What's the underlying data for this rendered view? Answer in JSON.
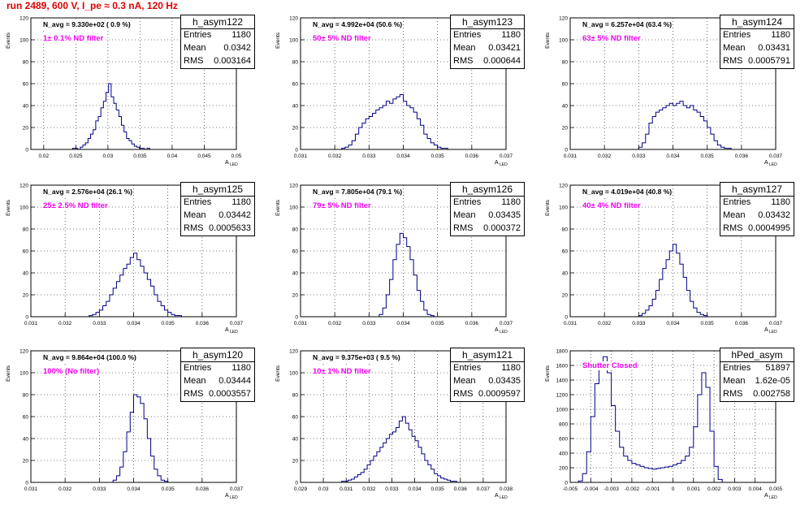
{
  "title": "run 2489,   600 V, I_pe ≈ 0.3 nA, 120 Hz",
  "chart_data": [
    {
      "type": "histogram",
      "name": "h_asym122",
      "stats": {
        "entries_label": "Entries",
        "entries": "1180",
        "mean_label": "Mean",
        "mean": "0.0342",
        "rms_label": "RMS",
        "rms": "0.003164"
      },
      "navg_text": "N_avg = 9.330e+02 ( 0.9 %)",
      "filter_text": "1± 0.1% ND filter",
      "xlabel": "A",
      "xlabel_sub": "LED",
      "ylabel": "Events",
      "xlim": [
        0.018,
        0.05
      ],
      "ylim": [
        0,
        120
      ],
      "xticks": [
        "0.02",
        "0.025",
        "0.03",
        "0.035",
        "0.04",
        "0.045",
        "0.05"
      ],
      "xtick_values": [
        0.02,
        0.025,
        0.03,
        0.035,
        0.04,
        0.045,
        0.05
      ],
      "yticks": [
        0,
        20,
        40,
        60,
        80,
        100,
        120
      ],
      "bin_edges": {
        "start": 0.0245,
        "width": 0.0004
      },
      "counts": [
        1,
        1,
        0,
        2,
        4,
        6,
        10,
        14,
        18,
        26,
        30,
        38,
        44,
        52,
        60,
        48,
        42,
        36,
        30,
        22,
        16,
        10,
        8,
        5,
        3,
        2,
        1,
        1,
        0,
        1
      ]
    },
    {
      "type": "histogram",
      "name": "h_asym123",
      "stats": {
        "entries_label": "Entries",
        "entries": "1180",
        "mean_label": "Mean",
        "mean": "0.03421",
        "rms_label": "RMS",
        "rms": "0.000644"
      },
      "navg_text": "N_avg = 4.992e+04 (50.6 %)",
      "filter_text": "50± 5% ND filter",
      "xlabel": "A",
      "xlabel_sub": "LED",
      "ylabel": "Events",
      "xlim": [
        0.031,
        0.037
      ],
      "ylim": [
        0,
        120
      ],
      "xticks": [
        "0.031",
        "0.032",
        "0.033",
        "0.034",
        "0.035",
        "0.036",
        "0.037"
      ],
      "xtick_values": [
        0.031,
        0.032,
        0.033,
        0.034,
        0.035,
        0.036,
        0.037
      ],
      "yticks": [
        0,
        20,
        40,
        60,
        80,
        100,
        120
      ],
      "bin_edges": {
        "start": 0.0322,
        "width": 0.0001
      },
      "counts": [
        1,
        2,
        4,
        8,
        14,
        20,
        24,
        28,
        30,
        33,
        36,
        38,
        40,
        44,
        42,
        46,
        48,
        50,
        44,
        40,
        38,
        34,
        28,
        22,
        14,
        10,
        6,
        4,
        2,
        1,
        1
      ]
    },
    {
      "type": "histogram",
      "name": "h_asym124",
      "stats": {
        "entries_label": "Entries",
        "entries": "1180",
        "mean_label": "Mean",
        "mean": "0.03431",
        "rms_label": "RMS",
        "rms": "0.0005791"
      },
      "navg_text": "N_avg = 6.257e+04 (63.4 %)",
      "filter_text": "63± 5% ND filter",
      "xlabel": "A",
      "xlabel_sub": "LED",
      "ylabel": "Events",
      "xlim": [
        0.031,
        0.037
      ],
      "ylim": [
        0,
        120
      ],
      "xticks": [
        "0.031",
        "0.032",
        "0.033",
        "0.034",
        "0.035",
        "0.036",
        "0.037"
      ],
      "xtick_values": [
        0.031,
        0.032,
        0.033,
        0.034,
        0.035,
        0.036,
        0.037
      ],
      "yticks": [
        0,
        20,
        40,
        60,
        80,
        100,
        120
      ],
      "bin_edges": {
        "start": 0.033,
        "width": 0.0001
      },
      "counts": [
        2,
        6,
        14,
        24,
        30,
        34,
        36,
        38,
        40,
        42,
        40,
        42,
        44,
        40,
        38,
        40,
        36,
        34,
        30,
        26,
        20,
        14,
        8,
        4,
        2,
        1,
        1
      ]
    },
    {
      "type": "histogram",
      "name": "h_asym125",
      "stats": {
        "entries_label": "Entries",
        "entries": "1180",
        "mean_label": "Mean",
        "mean": "0.03442",
        "rms_label": "RMS",
        "rms": "0.0005633"
      },
      "navg_text": "N_avg = 2.576e+04 (26.1 %)",
      "filter_text": "25± 2.5% ND filter",
      "xlabel": "A",
      "xlabel_sub": "LED",
      "ylabel": "Events",
      "xlim": [
        0.031,
        0.037
      ],
      "ylim": [
        0,
        120
      ],
      "xticks": [
        "0.031",
        "0.032",
        "0.033",
        "0.034",
        "0.035",
        "0.036",
        "0.037"
      ],
      "xtick_values": [
        0.031,
        0.032,
        0.033,
        0.034,
        0.035,
        0.036,
        0.037
      ],
      "yticks": [
        0,
        20,
        40,
        60,
        80,
        100,
        120
      ],
      "bin_edges": {
        "start": 0.0327,
        "width": 0.0001
      },
      "counts": [
        1,
        2,
        4,
        6,
        10,
        14,
        20,
        26,
        32,
        38,
        44,
        48,
        54,
        58,
        52,
        46,
        40,
        34,
        28,
        20,
        14,
        10,
        6,
        4,
        2,
        1,
        1
      ]
    },
    {
      "type": "histogram",
      "name": "h_asym126",
      "stats": {
        "entries_label": "Entries",
        "entries": "1180",
        "mean_label": "Mean",
        "mean": "0.03435",
        "rms_label": "RMS",
        "rms": "0.000372"
      },
      "navg_text": "N_avg = 7.805e+04 (79.1 %)",
      "filter_text": "79± 5% ND filter",
      "xlabel": "A",
      "xlabel_sub": "LED",
      "ylabel": "Events",
      "xlim": [
        0.031,
        0.037
      ],
      "ylim": [
        0,
        120
      ],
      "xticks": [
        "0.031",
        "0.032",
        "0.033",
        "0.034",
        "0.035",
        "0.036",
        "0.037"
      ],
      "xtick_values": [
        0.031,
        0.032,
        0.033,
        0.034,
        0.035,
        0.036,
        0.037
      ],
      "yticks": [
        0,
        20,
        40,
        60,
        80,
        100,
        120
      ],
      "bin_edges": {
        "start": 0.0333,
        "width": 0.0001
      },
      "counts": [
        2,
        8,
        20,
        34,
        52,
        66,
        76,
        72,
        64,
        52,
        38,
        24,
        14,
        6,
        2,
        1
      ]
    },
    {
      "type": "histogram",
      "name": "h_asym127",
      "stats": {
        "entries_label": "Entries",
        "entries": "1180",
        "mean_label": "Mean",
        "mean": "0.03432",
        "rms_label": "RMS",
        "rms": "0.0004995"
      },
      "navg_text": "N_avg = 4.019e+04 (40.8 %)",
      "filter_text": "40± 4% ND filter",
      "xlabel": "A",
      "xlabel_sub": "LED",
      "ylabel": "Events",
      "xlim": [
        0.031,
        0.037
      ],
      "ylim": [
        0,
        120
      ],
      "xticks": [
        "0.031",
        "0.032",
        "0.033",
        "0.034",
        "0.035",
        "0.036",
        "0.037"
      ],
      "xtick_values": [
        0.031,
        0.032,
        0.033,
        0.034,
        0.035,
        0.036,
        0.037
      ],
      "yticks": [
        0,
        20,
        40,
        60,
        80,
        100,
        120
      ],
      "bin_edges": {
        "start": 0.033,
        "width": 0.0001
      },
      "counts": [
        1,
        3,
        6,
        10,
        16,
        24,
        34,
        44,
        52,
        60,
        66,
        58,
        48,
        36,
        24,
        14,
        8,
        4,
        2,
        1
      ]
    },
    {
      "type": "histogram",
      "name": "h_asym120",
      "stats": {
        "entries_label": "Entries",
        "entries": "1180",
        "mean_label": "Mean",
        "mean": "0.03444",
        "rms_label": "RMS",
        "rms": "0.0003557"
      },
      "navg_text": "N_avg = 9.864e+04 (100.0 %)",
      "filter_text": "100% (No filter)",
      "xlabel": "A",
      "xlabel_sub": "LED",
      "ylabel": "Events",
      "xlim": [
        0.031,
        0.037
      ],
      "ylim": [
        0,
        120
      ],
      "xticks": [
        "0.031",
        "0.032",
        "0.033",
        "0.034",
        "0.035",
        "0.036",
        "0.037"
      ],
      "xtick_values": [
        0.031,
        0.032,
        0.033,
        0.034,
        0.035,
        0.036,
        0.037
      ],
      "yticks": [
        0,
        20,
        40,
        60,
        80,
        100,
        120
      ],
      "bin_edges": {
        "start": 0.0334,
        "width": 0.0001
      },
      "counts": [
        2,
        6,
        14,
        28,
        46,
        64,
        80,
        78,
        72,
        58,
        40,
        24,
        12,
        6,
        2,
        1
      ]
    },
    {
      "type": "histogram",
      "name": "h_asym121",
      "stats": {
        "entries_label": "Entries",
        "entries": "1180",
        "mean_label": "Mean",
        "mean": "0.03435",
        "rms_label": "RMS",
        "rms": "0.0009597"
      },
      "navg_text": "N_avg = 9.375e+03 ( 9.5 %)",
      "filter_text": "10± 1% ND filter",
      "xlabel": "A",
      "xlabel_sub": "LED",
      "ylabel": "Events",
      "xlim": [
        0.029,
        0.038
      ],
      "ylim": [
        0,
        120
      ],
      "xticks": [
        "0.029",
        "0.03",
        "0.031",
        "0.032",
        "0.033",
        "0.034",
        "0.035",
        "0.036",
        "0.037",
        "0.038"
      ],
      "xtick_values": [
        0.029,
        0.03,
        0.031,
        0.032,
        0.033,
        0.034,
        0.035,
        0.036,
        0.037,
        0.038
      ],
      "yticks": [
        0,
        20,
        40,
        60,
        80,
        100,
        120
      ],
      "bin_edges": {
        "start": 0.0308,
        "width": 0.00014
      },
      "counts": [
        1,
        1,
        2,
        3,
        5,
        7,
        9,
        12,
        16,
        20,
        24,
        28,
        32,
        36,
        40,
        44,
        46,
        50,
        56,
        60,
        54,
        48,
        42,
        38,
        32,
        26,
        20,
        16,
        12,
        8,
        6,
        4,
        3,
        2,
        1,
        1
      ]
    },
    {
      "type": "histogram",
      "name": "hPed_asym",
      "stats": {
        "entries_label": "Entries",
        "entries": "51897",
        "mean_label": "Mean",
        "mean": "1.62e-05",
        "rms_label": "RMS",
        "rms": "0.002758"
      },
      "navg_text": "",
      "filter_text": "Shutter Closed",
      "xlabel": "A",
      "xlabel_sub": "LED",
      "ylabel": "Events",
      "xlim": [
        -0.005,
        0.005
      ],
      "ylim": [
        0,
        1800
      ],
      "xticks": [
        "-0.005",
        "-0.004",
        "-0.003",
        "-0.002",
        "-0.001",
        "0",
        "0.001",
        "0.002",
        "0.003",
        "0.004",
        "0.005"
      ],
      "xtick_values": [
        -0.005,
        -0.004,
        -0.003,
        -0.002,
        -0.001,
        0,
        0.001,
        0.002,
        0.003,
        0.004,
        0.005
      ],
      "yticks": [
        0,
        200,
        400,
        600,
        800,
        1000,
        1200,
        1400,
        1600,
        1800
      ],
      "bin_edges": {
        "start": -0.0046,
        "width": 0.0002
      },
      "counts": [
        20,
        120,
        420,
        900,
        1350,
        1600,
        1720,
        1500,
        1050,
        700,
        480,
        360,
        300,
        260,
        240,
        220,
        200,
        190,
        180,
        190,
        200,
        210,
        220,
        240,
        260,
        300,
        360,
        480,
        760,
        1200,
        1500,
        1300,
        700,
        220,
        40
      ]
    }
  ]
}
